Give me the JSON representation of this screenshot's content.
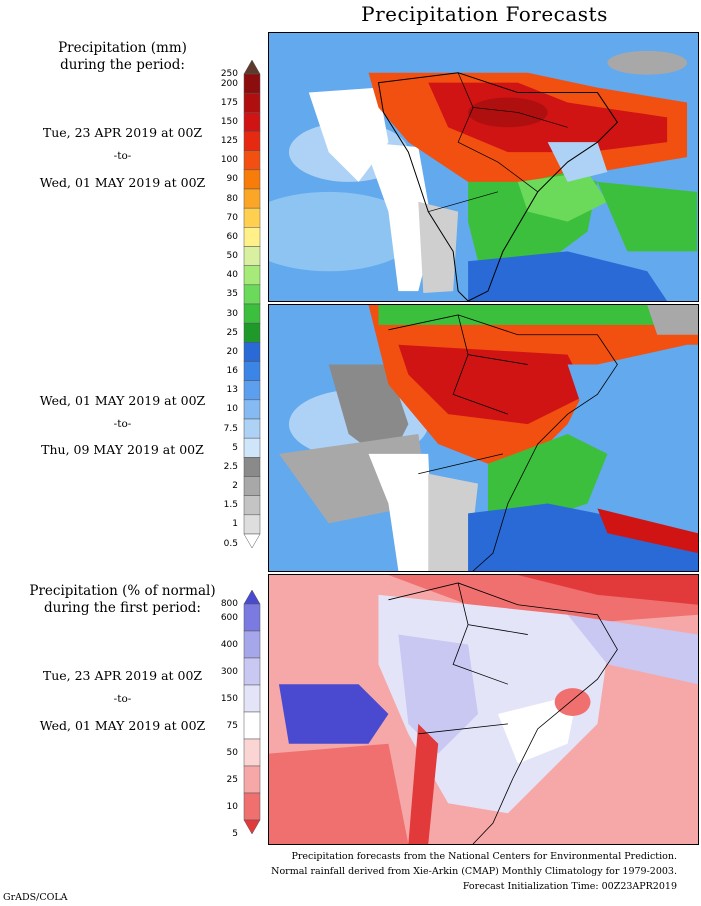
{
  "title": "Precipitation Forecasts",
  "panel1": {
    "heading": [
      "Precipitation (mm)",
      "during the period:"
    ],
    "start": "Tue, 23 APR 2019 at 00Z",
    "sep": "-to-",
    "end": "Wed, 01 MAY 2019 at 00Z"
  },
  "panel2": {
    "start": "Wed, 01 MAY 2019 at 00Z",
    "sep": "-to-",
    "end": "Thu, 09 MAY 2019 at 00Z"
  },
  "panel3": {
    "heading": [
      "Precipitation (% of normal)",
      "during the first period:"
    ],
    "start": "Tue, 23 APR 2019 at 00Z",
    "sep": "-to-",
    "end": "Wed, 01 MAY 2019 at 00Z"
  },
  "mm_scale": {
    "labels": [
      "250",
      "200",
      "175",
      "150",
      "125",
      "100",
      "90",
      "80",
      "70",
      "60",
      "50",
      "40",
      "35",
      "30",
      "25",
      "20",
      "16",
      "13",
      "10",
      "7.5",
      "5",
      "2.5",
      "2",
      "1.5",
      "1",
      "0.5"
    ],
    "colors": [
      "#5e3a2c",
      "#8c0d0d",
      "#b00f0f",
      "#d01414",
      "#e62a12",
      "#f25010",
      "#f87c0a",
      "#fca628",
      "#ffd050",
      "#fff08a",
      "#d8f0a0",
      "#a6ea7a",
      "#6bd95a",
      "#3cbf3c",
      "#1f9a2a",
      "#2a6ad6",
      "#3a85e6",
      "#5c9fee",
      "#86baf2",
      "#aed2f6",
      "#cfe6fa",
      "#8a8a8a",
      "#a8a8a8",
      "#c4c4c4",
      "#dedede",
      "#ffffff"
    ]
  },
  "pct_scale": {
    "labels": [
      "800",
      "600",
      "400",
      "300",
      "150",
      "75",
      "50",
      "25",
      "10",
      "5"
    ],
    "colors": [
      "#4a4ad0",
      "#7a7ae0",
      "#a6a6ea",
      "#c8c8f2",
      "#e4e4f8",
      "#ffffff",
      "#fbd4d4",
      "#f6a8a8",
      "#f07070",
      "#e23a3a"
    ]
  },
  "footer": [
    "Precipitation forecasts from the National Centers for Environmental Prediction.",
    "Normal rainfall derived from Xie-Arkin (CMAP) Monthly Climatology for 1979-2003.",
    "Forecast Initialization Time: 00Z23APR2019"
  ],
  "credit": "GrADS/COLA"
}
